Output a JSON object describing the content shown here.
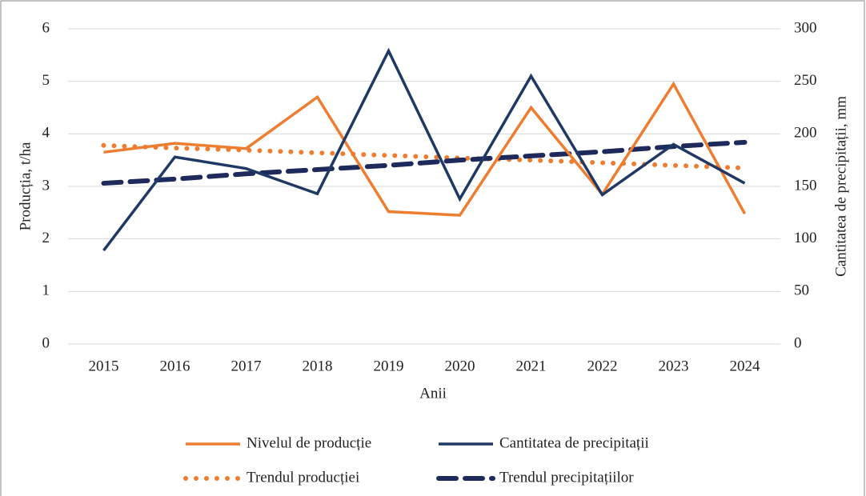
{
  "chart_data": {
    "type": "line",
    "x_label": "Anii",
    "y_label": "Producția, t/ha",
    "y2_label": "Cantitatea de  precipitații, mm",
    "categories": [
      "2015",
      "2016",
      "2017",
      "2018",
      "2019",
      "2020",
      "2021",
      "2022",
      "2023",
      "2024"
    ],
    "series": [
      {
        "name": "Nivelul de producție",
        "color": "#ed7d31",
        "line_style": "solid",
        "values": [
          3.65,
          3.82,
          3.72,
          4.7,
          2.52,
          2.45,
          4.5,
          2.85,
          4.95,
          2.48
        ]
      },
      {
        "name": "Cantitatea de  precipitații",
        "color": "#203864",
        "line_style": "solid",
        "axis": "y2",
        "values": [
          89,
          178,
          167,
          143,
          279,
          138,
          255,
          142,
          190,
          153
        ]
      },
      {
        "name": "Trendul producției",
        "color": "#ed7d31",
        "line_style": "dotted",
        "values": [
          3.78,
          3.73,
          3.69,
          3.64,
          3.59,
          3.54,
          3.5,
          3.45,
          3.4,
          3.35
        ]
      },
      {
        "name": "Trendul precipitațiilor",
        "color": "#1f2a5c",
        "line_style": "dashed",
        "axis": "y2",
        "values": [
          153,
          157,
          162,
          166,
          170,
          175,
          179,
          183,
          188,
          192
        ]
      }
    ],
    "ylim": [
      0,
      6
    ],
    "yticks": [
      0,
      1,
      2,
      3,
      4,
      5,
      6
    ],
    "y2lim": [
      0,
      300
    ],
    "y2ticks": [
      0,
      50,
      100,
      150,
      200,
      250,
      300
    ],
    "grid": true,
    "legend": "bottom"
  }
}
